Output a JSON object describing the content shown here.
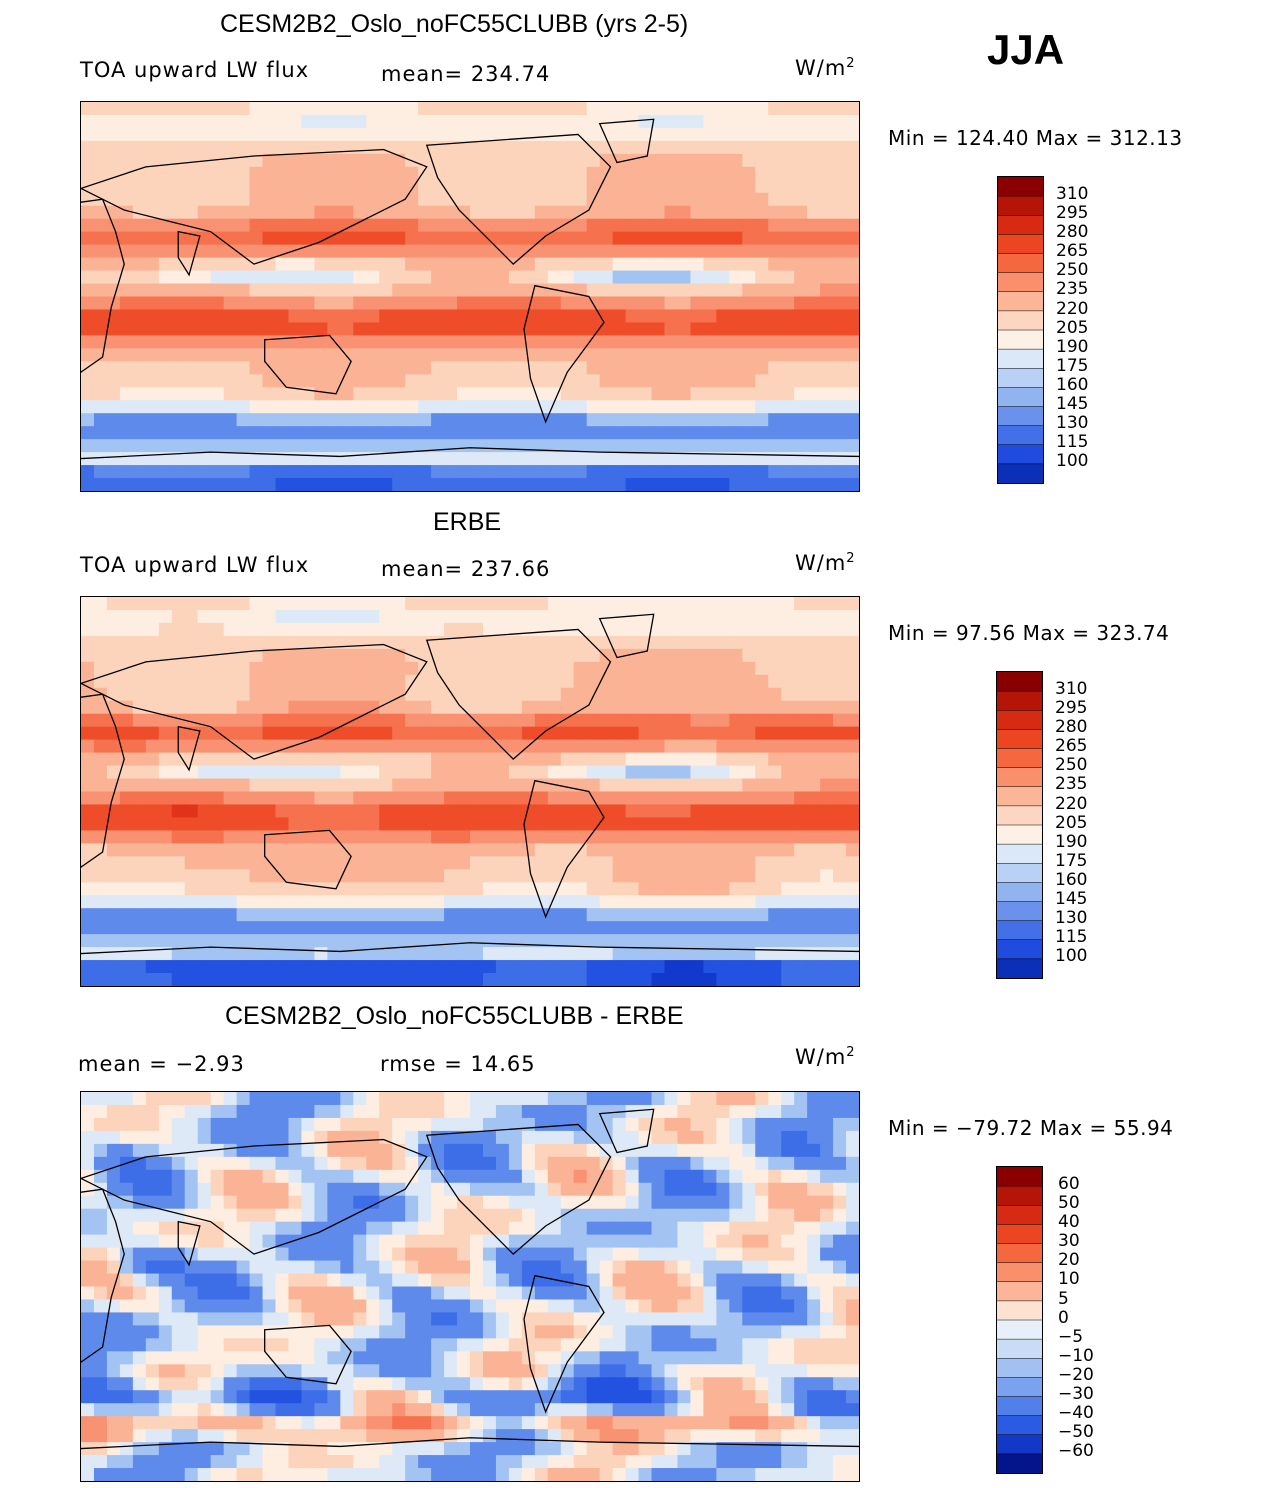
{
  "season": "JJA",
  "colors": {
    "pos": [
      "#fdeee1",
      "#fcd3bb",
      "#fbb396",
      "#f99272",
      "#f6714d",
      "#ef4d2a",
      "#e0331a",
      "#c71e0e",
      "#a80d06",
      "#8a0000"
    ],
    "neg": [
      "#dde9f7",
      "#c2d9f5",
      "#a3c3f2",
      "#81a8ef",
      "#5e8aec",
      "#3e6de8",
      "#2352e0",
      "#1339cc",
      "#0a25ac",
      "#04148a"
    ]
  },
  "panels": [
    {
      "title": "CESM2B2_Oslo_noFC55CLUBB (yrs 2-5)",
      "left": "TOA upward LW flux",
      "center": "mean=  234.74",
      "unit_base": "W/m",
      "unit_exp": "2",
      "min_label": "Min  =  124.40  Max  =  312.13",
      "legend": [
        "310",
        "295",
        "280",
        "265",
        "250",
        "235",
        "220",
        "205",
        "190",
        "175",
        "160",
        "145",
        "130",
        "115",
        "100"
      ],
      "legend_colors": [
        "#8a0000",
        "#b51506",
        "#d72a12",
        "#ec4522",
        "#f5683f",
        "#f98f6b",
        "#fbb597",
        "#fcd6c1",
        "#fdf0e4",
        "#dbe8f7",
        "#b8d1f4",
        "#91b4f0",
        "#6a92ec",
        "#4370e8",
        "#1f4cde",
        "#0c2fb8"
      ],
      "field": "model"
    },
    {
      "title": "ERBE",
      "left": "TOA upward LW flux",
      "center": "mean=  237.66",
      "unit_base": "W/m",
      "unit_exp": "2",
      "min_label": "Min  =    97.56  Max  =  323.74",
      "legend": [
        "310",
        "295",
        "280",
        "265",
        "250",
        "235",
        "220",
        "205",
        "190",
        "175",
        "160",
        "145",
        "130",
        "115",
        "100"
      ],
      "legend_colors": [
        "#8a0000",
        "#b51506",
        "#d72a12",
        "#ec4522",
        "#f5683f",
        "#f98f6b",
        "#fbb597",
        "#fcd6c1",
        "#fdf0e4",
        "#dbe8f7",
        "#b8d1f4",
        "#91b4f0",
        "#6a92ec",
        "#4370e8",
        "#1f4cde",
        "#0c2fb8"
      ],
      "field": "obs"
    },
    {
      "title": "CESM2B2_Oslo_noFC55CLUBB - ERBE",
      "left": "mean  =    −2.93",
      "center": "rmse  =    14.65",
      "unit_base": "W/m",
      "unit_exp": "2",
      "min_label": "Min  =  −79.72  Max  =    55.94",
      "legend": [
        "60",
        "50",
        "40",
        "30",
        "20",
        "10",
        "5",
        "0",
        "−5",
        "−10",
        "−20",
        "−30",
        "−40",
        "−50",
        "−60"
      ],
      "legend_colors": [
        "#8a0000",
        "#b51506",
        "#d72a12",
        "#ec4522",
        "#f5683f",
        "#f98f6b",
        "#fbb597",
        "#fde2d2",
        "#e7f0fa",
        "#c8dcf6",
        "#a2c1f2",
        "#7ba2ee",
        "#5280ea",
        "#2b5be3",
        "#1238c8",
        "#04148a"
      ],
      "field": "diff"
    }
  ]
}
